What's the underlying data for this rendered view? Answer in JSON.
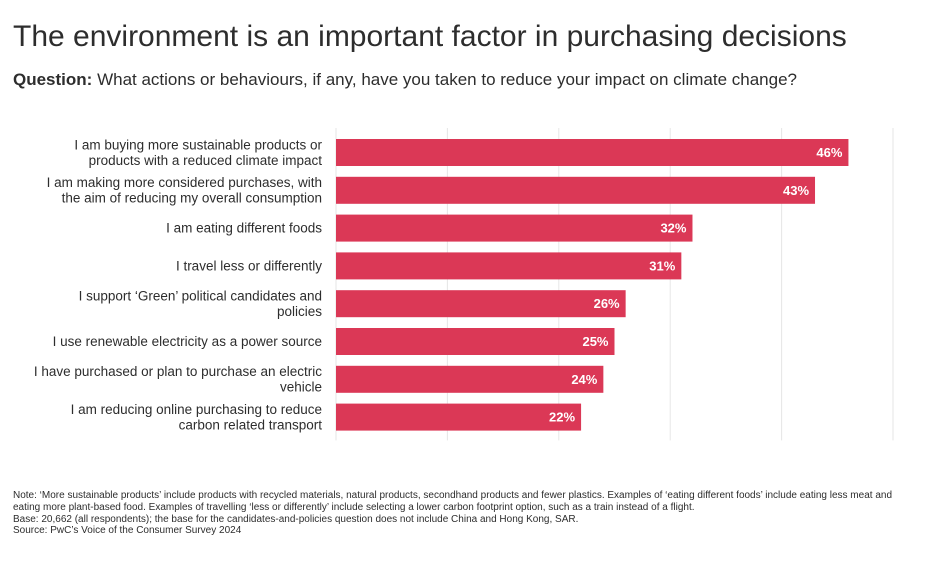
{
  "title": "The environment is an important factor in purchasing decisions",
  "subtitle": {
    "prefix": "Question:",
    "text": " What actions or behaviours, if any, have you taken to reduce your impact on climate change?"
  },
  "chart_data": {
    "type": "bar",
    "orientation": "horizontal",
    "categories": [
      [
        "I am buying more sustainable products or",
        "products with a reduced climate impact"
      ],
      [
        "I am making more considered purchases, with",
        "the aim of reducing my overall consumption"
      ],
      [
        "I am eating different foods"
      ],
      [
        "I travel less or differently"
      ],
      [
        "I support ‘Green’ political candidates and",
        "policies"
      ],
      [
        "I use renewable electricity as a power source"
      ],
      [
        "I have purchased or plan to purchase an electric",
        "vehicle"
      ],
      [
        "I am reducing online purchasing to reduce",
        "carbon related transport"
      ]
    ],
    "values": [
      46,
      43,
      32,
      31,
      26,
      25,
      24,
      22
    ],
    "value_labels": [
      "46%",
      "43%",
      "32%",
      "31%",
      "26%",
      "25%",
      "24%",
      "22%"
    ],
    "xlim": [
      0,
      50
    ],
    "grid": true,
    "bar_color": "#db3856"
  },
  "notes": {
    "note": "Note: ‘More sustainable products’ include products with recycled materials, natural products, secondhand products and fewer plastics. Examples of ‘eating different foods’ include eating less meat and eating more plant-based food. Examples of travelling ‘less or differently’ include selecting a lower carbon footprint option, such as a train instead of a flight.",
    "base": "Base: 20,662 (all respondents); the base for the candidates-and-policies question does not include China and Hong Kong, SAR.",
    "source": "Source: PwC’s Voice of the Consumer Survey 2024"
  }
}
